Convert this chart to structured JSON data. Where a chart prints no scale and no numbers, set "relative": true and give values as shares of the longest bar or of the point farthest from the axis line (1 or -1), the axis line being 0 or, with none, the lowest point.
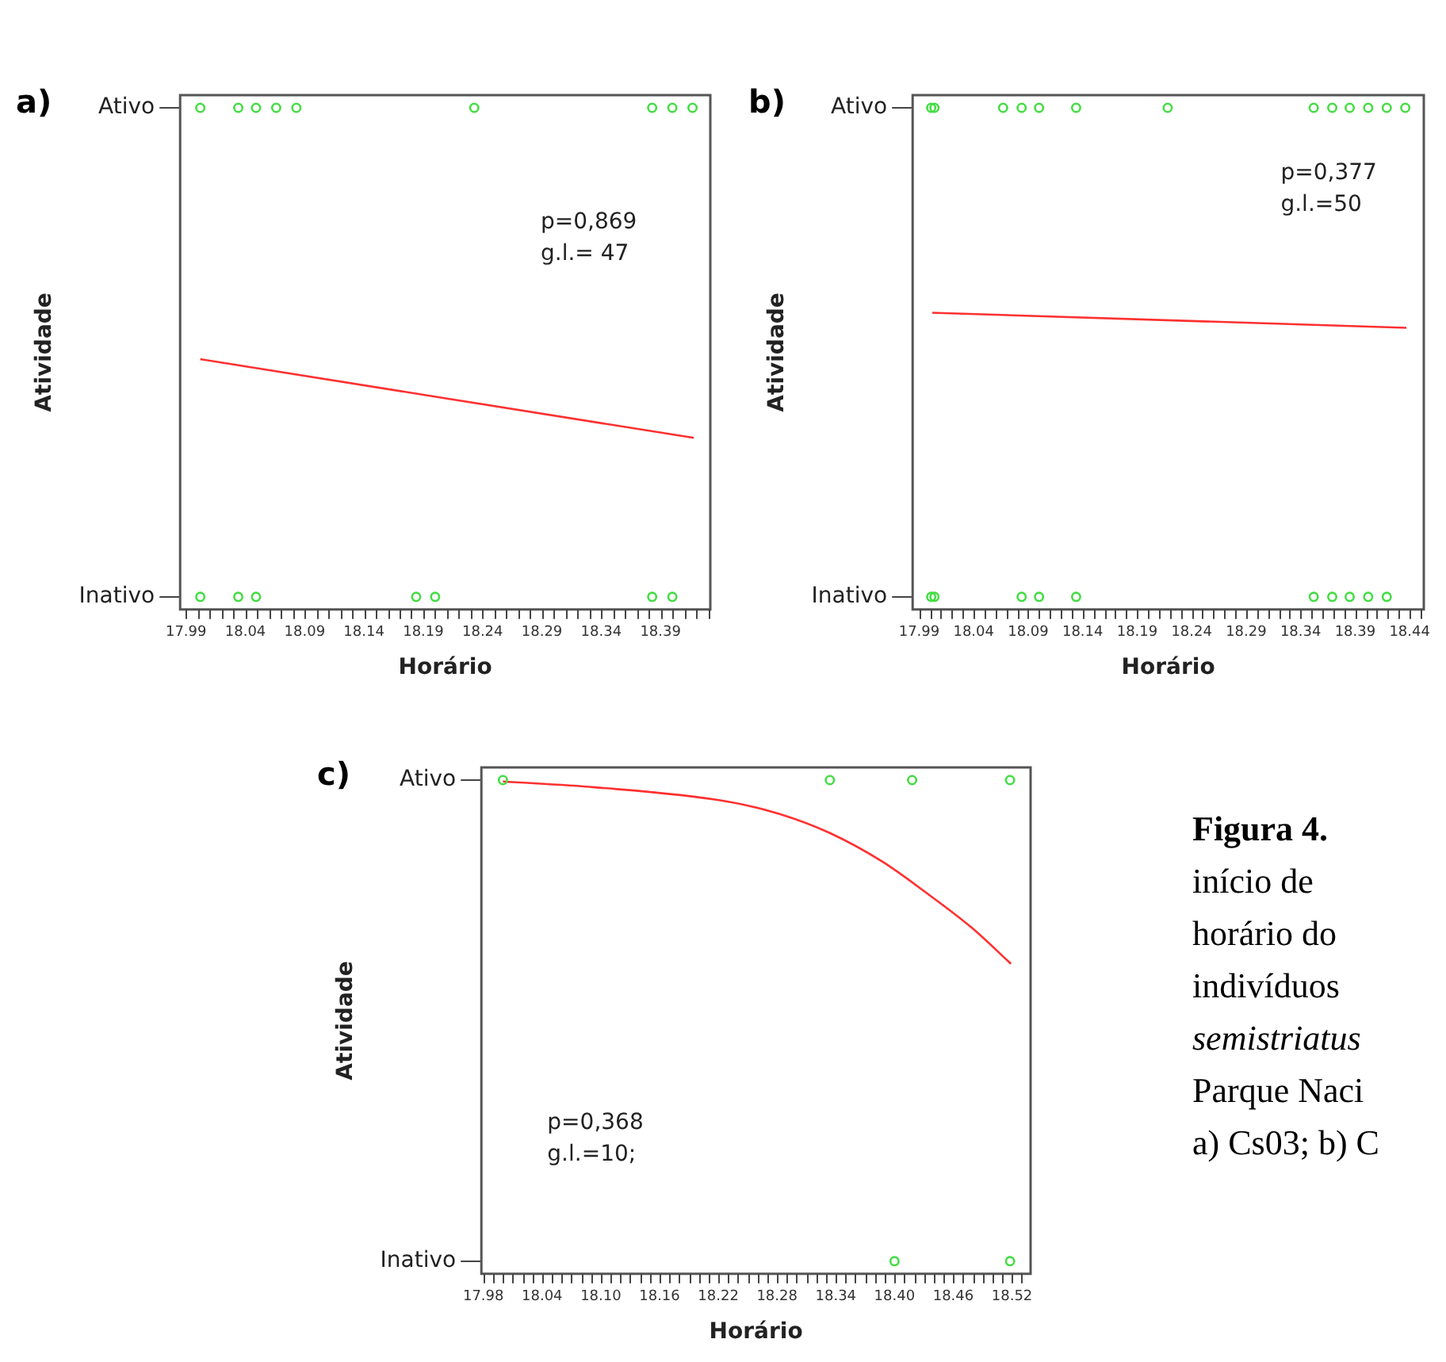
{
  "chart_data": [
    {
      "type": "scatter",
      "title": "a)",
      "xlabel": "Horário",
      "ylabel": "Atividade",
      "xlim": [
        17.985,
        18.432
      ],
      "relative": true,
      "xticks": [
        17.99,
        {
          "value": 18.0,
          "label": null
        },
        {
          "value": 18.01,
          "label": null
        },
        {
          "value": 18.02,
          "label": null
        },
        {
          "value": 18.03,
          "label": null
        },
        18.04,
        {
          "value": 18.05,
          "label": null
        },
        {
          "value": 18.06,
          "label": null
        },
        {
          "value": 18.07,
          "label": null
        },
        {
          "value": 18.08,
          "label": null
        },
        18.09,
        {
          "value": 18.1,
          "label": null
        },
        {
          "value": 18.11,
          "label": null
        },
        {
          "value": 18.12,
          "label": null
        },
        {
          "value": 18.13,
          "label": null
        },
        18.14,
        {
          "value": 18.15,
          "label": null
        },
        {
          "value": 18.16,
          "label": null
        },
        {
          "value": 18.17,
          "label": null
        },
        {
          "value": 18.18,
          "label": null
        },
        18.19,
        {
          "value": 18.2,
          "label": null
        },
        {
          "value": 18.21,
          "label": null
        },
        {
          "value": 18.22,
          "label": null
        },
        {
          "value": 18.23,
          "label": null
        },
        18.24,
        {
          "value": 18.25,
          "label": null
        },
        {
          "value": 18.26,
          "label": null
        },
        {
          "value": 18.27,
          "label": null
        },
        {
          "value": 18.28,
          "label": null
        },
        18.29,
        {
          "value": 18.3,
          "label": null
        },
        {
          "value": 18.31,
          "label": null
        },
        {
          "value": 18.32,
          "label": null
        },
        {
          "value": 18.33,
          "label": null
        },
        18.34,
        {
          "value": 18.35,
          "label": null
        },
        {
          "value": 18.36,
          "label": null
        },
        {
          "value": 18.37,
          "label": null
        },
        {
          "value": 18.38,
          "label": null
        },
        18.39,
        {
          "value": 18.4,
          "label": null
        },
        {
          "value": 18.41,
          "label": null
        },
        {
          "value": 18.42,
          "label": null
        },
        {
          "value": 18.43,
          "label": null
        }
      ],
      "y_categories": [
        "Ativo",
        "Inativo"
      ],
      "marker": "circle",
      "annotations": [
        "p=0,869",
        "g.l.= 47"
      ],
      "series": [
        {
          "type": "scatter",
          "color": "#44dd44",
          "x": [
            18.002,
            18.034,
            18.049,
            18.066,
            18.083,
            18.233,
            18.383,
            18.4,
            18.417,
            18.002,
            18.034,
            18.049,
            18.184,
            18.2,
            18.383,
            18.4
          ],
          "values": [
            1,
            1,
            1,
            1,
            1,
            1,
            1,
            1,
            1,
            0,
            0,
            0,
            0,
            0,
            0,
            0
          ]
        },
        {
          "type": "line",
          "color": "#ff3030",
          "marker": "none",
          "x": [
            18.002,
            18.418
          ],
          "values": [
            0.486,
            0.325
          ]
        }
      ]
    },
    {
      "type": "scatter",
      "title": "b)",
      "xlabel": "Horário",
      "ylabel": "Atividade",
      "xlim": [
        17.984,
        18.453
      ],
      "relative": true,
      "xticks": [
        17.99,
        {
          "value": 18.0,
          "label": null
        },
        {
          "value": 18.01,
          "label": null
        },
        {
          "value": 18.02,
          "label": null
        },
        {
          "value": 18.03,
          "label": null
        },
        18.04,
        {
          "value": 18.05,
          "label": null
        },
        {
          "value": 18.06,
          "label": null
        },
        {
          "value": 18.07,
          "label": null
        },
        {
          "value": 18.08,
          "label": null
        },
        18.09,
        {
          "value": 18.1,
          "label": null
        },
        {
          "value": 18.11,
          "label": null
        },
        {
          "value": 18.12,
          "label": null
        },
        {
          "value": 18.13,
          "label": null
        },
        18.14,
        {
          "value": 18.15,
          "label": null
        },
        {
          "value": 18.16,
          "label": null
        },
        {
          "value": 18.17,
          "label": null
        },
        {
          "value": 18.18,
          "label": null
        },
        18.19,
        {
          "value": 18.2,
          "label": null
        },
        {
          "value": 18.21,
          "label": null
        },
        {
          "value": 18.22,
          "label": null
        },
        {
          "value": 18.23,
          "label": null
        },
        18.24,
        {
          "value": 18.25,
          "label": null
        },
        {
          "value": 18.26,
          "label": null
        },
        {
          "value": 18.27,
          "label": null
        },
        {
          "value": 18.28,
          "label": null
        },
        18.29,
        {
          "value": 18.3,
          "label": null
        },
        {
          "value": 18.31,
          "label": null
        },
        {
          "value": 18.32,
          "label": null
        },
        {
          "value": 18.33,
          "label": null
        },
        18.34,
        {
          "value": 18.35,
          "label": null
        },
        {
          "value": 18.36,
          "label": null
        },
        {
          "value": 18.37,
          "label": null
        },
        {
          "value": 18.38,
          "label": null
        },
        18.39,
        {
          "value": 18.4,
          "label": null
        },
        {
          "value": 18.41,
          "label": null
        },
        {
          "value": 18.42,
          "label": null
        },
        {
          "value": 18.43,
          "label": null
        },
        18.44,
        {
          "value": 18.45,
          "label": null
        }
      ],
      "y_categories": [
        "Ativo",
        "Inativo"
      ],
      "marker": "circle",
      "annotations": [
        "p=0,377",
        "g.l.=50"
      ],
      "series": [
        {
          "type": "scatter",
          "color": "#44dd44",
          "x": [
            18.001,
            18.004,
            18.067,
            18.084,
            18.1,
            18.134,
            18.218,
            18.352,
            18.369,
            18.385,
            18.402,
            18.419,
            18.436,
            18.001,
            18.004,
            18.084,
            18.1,
            18.134,
            18.352,
            18.369,
            18.385,
            18.402,
            18.419
          ],
          "values": [
            1,
            1,
            1,
            1,
            1,
            1,
            1,
            1,
            1,
            1,
            1,
            1,
            1,
            0,
            0,
            0,
            0,
            0,
            0,
            0,
            0,
            0,
            0
          ]
        },
        {
          "type": "line",
          "color": "#ff3030",
          "marker": "none",
          "x": [
            18.002,
            18.437
          ],
          "values": [
            0.581,
            0.55
          ]
        }
      ]
    },
    {
      "type": "scatter",
      "title": "c)",
      "xlabel": "Horário",
      "ylabel": "Atividade",
      "xlim": [
        17.978,
        18.539
      ],
      "relative": true,
      "xticks": [
        17.98,
        {
          "value": 17.99,
          "label": null
        },
        {
          "value": 18.0,
          "label": null
        },
        {
          "value": 18.01,
          "label": null
        },
        {
          "value": 18.02,
          "label": null
        },
        {
          "value": 18.03,
          "label": null
        },
        18.04,
        {
          "value": 18.05,
          "label": null
        },
        {
          "value": 18.06,
          "label": null
        },
        {
          "value": 18.07,
          "label": null
        },
        {
          "value": 18.08,
          "label": null
        },
        {
          "value": 18.09,
          "label": null
        },
        {
          "value": 18.1,
          "label": "18.10"
        },
        {
          "value": 18.11,
          "label": null
        },
        {
          "value": 18.12,
          "label": null
        },
        {
          "value": 18.13,
          "label": null
        },
        {
          "value": 18.14,
          "label": null
        },
        {
          "value": 18.15,
          "label": null
        },
        18.16,
        {
          "value": 18.17,
          "label": null
        },
        {
          "value": 18.18,
          "label": null
        },
        {
          "value": 18.19,
          "label": null
        },
        {
          "value": 18.2,
          "label": null
        },
        {
          "value": 18.21,
          "label": null
        },
        18.22,
        {
          "value": 18.23,
          "label": null
        },
        {
          "value": 18.24,
          "label": null
        },
        {
          "value": 18.25,
          "label": null
        },
        {
          "value": 18.26,
          "label": null
        },
        {
          "value": 18.27,
          "label": null
        },
        18.28,
        {
          "value": 18.29,
          "label": null
        },
        {
          "value": 18.3,
          "label": null
        },
        {
          "value": 18.31,
          "label": null
        },
        {
          "value": 18.32,
          "label": null
        },
        {
          "value": 18.33,
          "label": null
        },
        18.34,
        {
          "value": 18.35,
          "label": null
        },
        {
          "value": 18.36,
          "label": null
        },
        {
          "value": 18.37,
          "label": null
        },
        {
          "value": 18.38,
          "label": null
        },
        {
          "value": 18.39,
          "label": null
        },
        {
          "value": 18.4,
          "label": "18.40"
        },
        {
          "value": 18.41,
          "label": null
        },
        {
          "value": 18.42,
          "label": null
        },
        {
          "value": 18.43,
          "label": null
        },
        {
          "value": 18.44,
          "label": null
        },
        {
          "value": 18.45,
          "label": null
        },
        18.46,
        {
          "value": 18.47,
          "label": null
        },
        {
          "value": 18.48,
          "label": null
        },
        {
          "value": 18.49,
          "label": null
        },
        {
          "value": 18.5,
          "label": null
        },
        {
          "value": 18.51,
          "label": null
        },
        18.52,
        {
          "value": 18.53,
          "label": null
        }
      ],
      "y_categories": [
        "Ativo",
        "Inativo"
      ],
      "marker": "circle",
      "annotations": [
        "p=0,368",
        "g.l.=10;"
      ],
      "series": [
        {
          "type": "scatter",
          "color": "#44dd44",
          "x": [
            18.0,
            18.334,
            18.418,
            18.518,
            18.4,
            18.518
          ],
          "values": [
            1,
            1,
            1,
            1,
            0,
            0
          ]
        },
        {
          "type": "line",
          "color": "#ff3030",
          "marker": "none",
          "x": [
            18.0,
            18.094,
            18.228,
            18.282,
            18.334,
            18.388,
            18.431,
            18.479,
            18.519
          ],
          "values": [
            0.997,
            0.985,
            0.956,
            0.93,
            0.89,
            0.83,
            0.768,
            0.693,
            0.618
          ]
        }
      ]
    },
    {
      "type": "other",
      "annotations": [
        "Figura 4.",
        "início de",
        "horário do",
        "indivíduos",
        "semistriatus",
        "Parque Naci",
        "a) Cs03; b) C"
      ]
    }
  ]
}
